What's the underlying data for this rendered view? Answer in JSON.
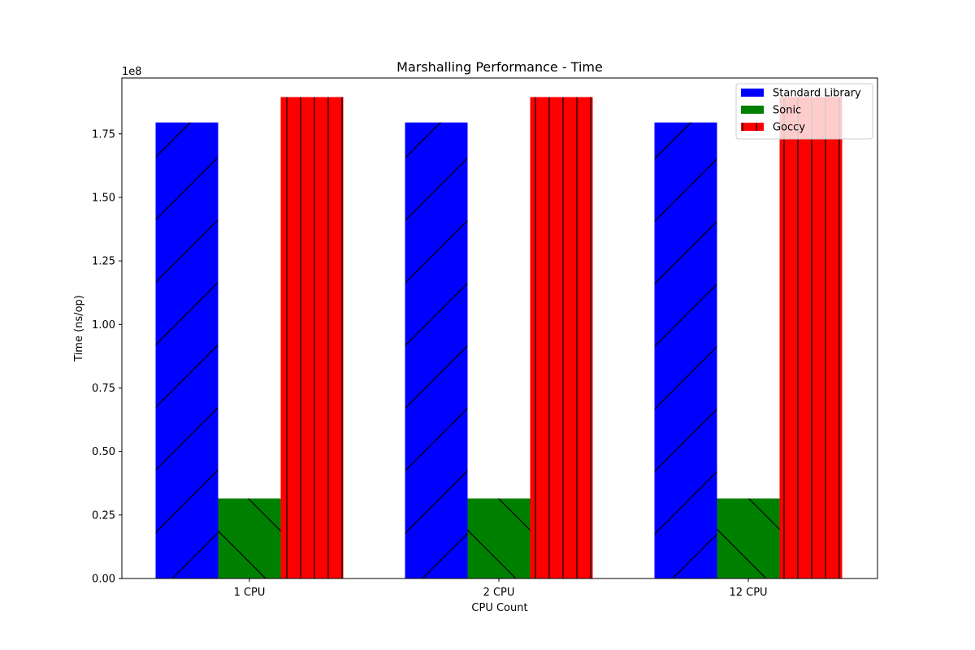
{
  "chart_data": {
    "type": "bar",
    "title": "Marshalling Performance - Time",
    "xlabel": "CPU Count",
    "ylabel": "Time (ns/op)",
    "y_offset_label": "1e8",
    "categories": [
      "1 CPU",
      "2 CPU",
      "12 CPU"
    ],
    "ylim": [
      0,
      197000000
    ],
    "yticks": [
      0,
      25000000,
      50000000,
      75000000,
      100000000,
      125000000,
      150000000,
      175000000
    ],
    "ytick_labels": [
      "0.00",
      "0.25",
      "0.50",
      "0.75",
      "1.00",
      "1.25",
      "1.50",
      "1.75"
    ],
    "legend_position": "top-right",
    "grid": false,
    "series": [
      {
        "name": "Standard Library",
        "color": "#0000ff",
        "hatch": "/",
        "values": [
          179500000,
          179500000,
          179500000
        ]
      },
      {
        "name": "Sonic",
        "color": "#008000",
        "hatch": "\\",
        "values": [
          31500000,
          31500000,
          31500000
        ]
      },
      {
        "name": "Goccy",
        "color": "#ff0000",
        "hatch": "|",
        "values": [
          189500000,
          189500000,
          189500000
        ]
      }
    ]
  }
}
